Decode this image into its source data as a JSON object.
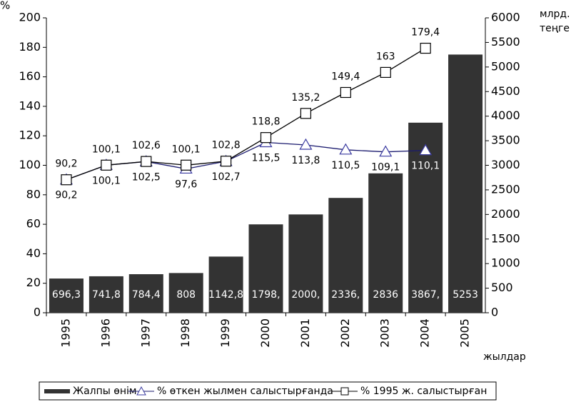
{
  "chart_data": {
    "type": "bar",
    "y_label": "%",
    "y2_label": "млрд. теңге",
    "x_label": "жылдар",
    "categories": [
      "1995",
      "1996",
      "1997",
      "1998",
      "1999",
      "2000",
      "2001",
      "2002",
      "2003",
      "2004",
      "2005"
    ],
    "ylim": [
      0,
      200
    ],
    "yticks": [
      0,
      20,
      40,
      60,
      80,
      100,
      120,
      140,
      160,
      180,
      200
    ],
    "y2lim": [
      0,
      6000
    ],
    "y2ticks": [
      0,
      500,
      1000,
      1500,
      2000,
      2500,
      3000,
      3500,
      4000,
      4500,
      5000,
      5500,
      6000
    ],
    "legend": "bottom",
    "series": [
      {
        "name": "Жалпы өнім",
        "type": "bar",
        "axis": "y2",
        "color": "#333333",
        "values": [
          696.3,
          741.8,
          784.4,
          808,
          1142.8,
          1798.1,
          2000.1,
          2336.1,
          2836,
          3867.1,
          5253
        ],
        "value_labels": [
          "696,3",
          "741,8",
          "784,4",
          "808",
          "1142,8",
          "1798,",
          "2000,",
          "2336,",
          "2836",
          "3867,",
          "5253"
        ]
      },
      {
        "name": "% өткен жылмен салыстырғанда",
        "type": "line",
        "marker": "triangle",
        "color": "#1a1a6e",
        "values": [
          90.2,
          100.1,
          102.5,
          97.6,
          102.7,
          115.5,
          113.8,
          110.5,
          109.1,
          110.1,
          null
        ],
        "value_labels": [
          "90,2",
          "100,1",
          "102,5",
          "97,6",
          "102,7",
          "115,5",
          "113,8",
          "110,5",
          "109,1",
          "110,1",
          null
        ]
      },
      {
        "name": "% 1995 ж. салыстырған",
        "type": "line",
        "marker": "square",
        "color": "#000000",
        "values": [
          90.2,
          100.1,
          102.6,
          100.1,
          102.8,
          118.8,
          135.2,
          149.4,
          163,
          179.4,
          null
        ],
        "value_labels": [
          "90,2",
          "100,1",
          "102,6",
          "100,1",
          "102,8",
          "118,8",
          "135,2",
          "149,4",
          "163",
          "179,4",
          null
        ]
      }
    ]
  }
}
